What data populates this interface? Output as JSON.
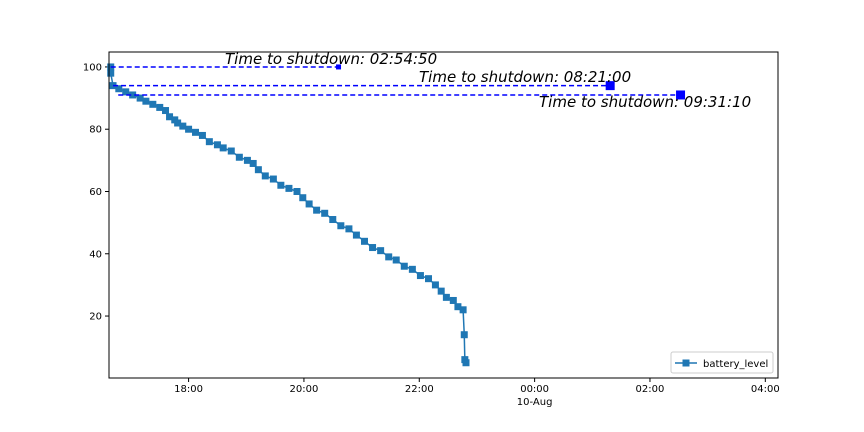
{
  "chart_data": {
    "type": "line",
    "x": [
      16.65,
      16.65,
      16.69,
      16.79,
      16.91,
      17.03,
      17.16,
      17.26,
      17.38,
      17.5,
      17.6,
      17.67,
      17.76,
      17.81,
      17.9,
      18.0,
      18.12,
      18.24,
      18.36,
      18.5,
      18.6,
      18.74,
      18.88,
      19.02,
      19.12,
      19.21,
      19.33,
      19.47,
      19.6,
      19.74,
      19.88,
      19.98,
      20.09,
      20.22,
      20.36,
      20.5,
      20.64,
      20.78,
      20.91,
      21.05,
      21.19,
      21.33,
      21.47,
      21.6,
      21.74,
      21.88,
      22.02,
      22.16,
      22.28,
      22.38,
      22.47,
      22.59,
      22.67,
      22.76,
      22.78,
      22.79,
      22.81
    ],
    "series": [
      {
        "name": "battery_level",
        "color": "#1f77b4",
        "values": [
          100,
          98,
          94,
          93,
          92,
          91,
          90,
          89,
          88,
          87,
          86,
          84,
          83,
          82,
          81,
          80,
          79,
          78,
          76,
          75,
          74,
          73,
          71,
          70,
          69,
          67,
          65,
          64,
          62,
          61,
          60,
          58,
          56,
          54,
          53,
          51,
          49,
          48,
          46,
          44,
          42,
          41,
          39,
          38,
          36,
          35,
          33,
          32,
          30,
          28,
          26,
          25,
          23,
          22,
          14,
          6,
          5
        ]
      }
    ],
    "projections": [
      {
        "text": "Time to shutdown: 02:54:50",
        "x": [
          16.65,
          20.6
        ],
        "values": [
          100,
          100
        ],
        "color": "#0000ff"
      },
      {
        "text": "Time to shutdown: 08:21:00",
        "x": [
          16.69,
          25.31
        ],
        "values": [
          94,
          94
        ],
        "color": "#0000ff"
      },
      {
        "text": "Time to shutdown: 09:31:10",
        "x": [
          16.78,
          26.53
        ],
        "values": [
          91,
          91
        ],
        "color": "#0000ff"
      }
    ],
    "xlim": [
      16.62,
      28.22
    ],
    "xticks": [
      {
        "value": 18,
        "label": "18:00"
      },
      {
        "value": 20,
        "label": "20:00"
      },
      {
        "value": 22,
        "label": "22:00"
      },
      {
        "value": 24,
        "label": "00:00"
      },
      {
        "value": 26,
        "label": "02:00"
      },
      {
        "value": 28,
        "label": "04:00"
      }
    ],
    "x_date_label": "10-Aug",
    "ylim": [
      0.1,
      104.8
    ],
    "yticks": [
      20,
      40,
      60,
      80,
      100
    ],
    "legend": "lower right"
  }
}
